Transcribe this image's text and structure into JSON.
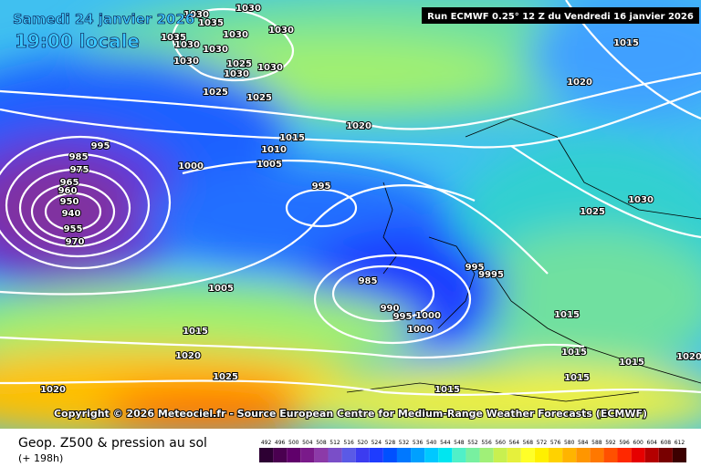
{
  "header": {
    "date": "Samedi 24 janvier 2026",
    "time": "19:00 locale",
    "run": "Run ECMWF 0.25° 12 Z du Vendredi 16 janvier 2026"
  },
  "copyright": "Copyright © 2026 Meteociel.fr - Source European Centre for Medium-Range Weather Forecasts (ECMWF)",
  "footer": {
    "title": "Geop. Z500 & pression au sol",
    "lead": "(+ 198h)"
  },
  "isobar_labels": [
    "1030",
    "1030",
    "1035",
    "1030",
    "1035",
    "1030",
    "1030",
    "1030",
    "1025",
    "1030",
    "1030",
    "1030",
    "1025",
    "1025",
    "1020",
    "1015",
    "1010",
    "1005",
    "1000",
    "995",
    "995",
    "985",
    "975",
    "965",
    "960",
    "950",
    "940",
    "955",
    "970",
    "1005",
    "985",
    "990",
    "995",
    "1000",
    "1000",
    "995",
    "9995",
    "1015",
    "1020",
    "1025",
    "1020",
    "1015",
    "1015",
    "1015",
    "1015",
    "1015",
    "1020",
    "1020",
    "1015",
    "1030",
    "1025"
  ],
  "scale": [
    {
      "value": 492,
      "color": "#2d0033"
    },
    {
      "value": 496,
      "color": "#4a0050"
    },
    {
      "value": 500,
      "color": "#60006b"
    },
    {
      "value": 504,
      "color": "#7a1a8a"
    },
    {
      "value": 508,
      "color": "#8c3aa8"
    },
    {
      "value": 512,
      "color": "#7a4ec8"
    },
    {
      "value": 516,
      "color": "#5a5ae6"
    },
    {
      "value": 520,
      "color": "#3c3cf0"
    },
    {
      "value": 524,
      "color": "#1e3cff"
    },
    {
      "value": 528,
      "color": "#0050ff"
    },
    {
      "value": 532,
      "color": "#0078ff"
    },
    {
      "value": 536,
      "color": "#00a0ff"
    },
    {
      "value": 540,
      "color": "#00c8ff"
    },
    {
      "value": 544,
      "color": "#00e6f0"
    },
    {
      "value": 548,
      "color": "#50f0c8"
    },
    {
      "value": 552,
      "color": "#78f0a0"
    },
    {
      "value": 556,
      "color": "#a0f078"
    },
    {
      "value": 560,
      "color": "#c8f050"
    },
    {
      "value": 564,
      "color": "#e6f03c"
    },
    {
      "value": 568,
      "color": "#ffff28"
    },
    {
      "value": 572,
      "color": "#fff000"
    },
    {
      "value": 576,
      "color": "#ffd200"
    },
    {
      "value": 580,
      "color": "#ffb400"
    },
    {
      "value": 584,
      "color": "#ff9600"
    },
    {
      "value": 588,
      "color": "#ff7800"
    },
    {
      "value": 592,
      "color": "#ff5000"
    },
    {
      "value": 596,
      "color": "#ff2800"
    },
    {
      "value": 600,
      "color": "#e60000"
    },
    {
      "value": 604,
      "color": "#b40000"
    },
    {
      "value": 608,
      "color": "#780000"
    },
    {
      "value": 612,
      "color": "#3c0000"
    }
  ]
}
